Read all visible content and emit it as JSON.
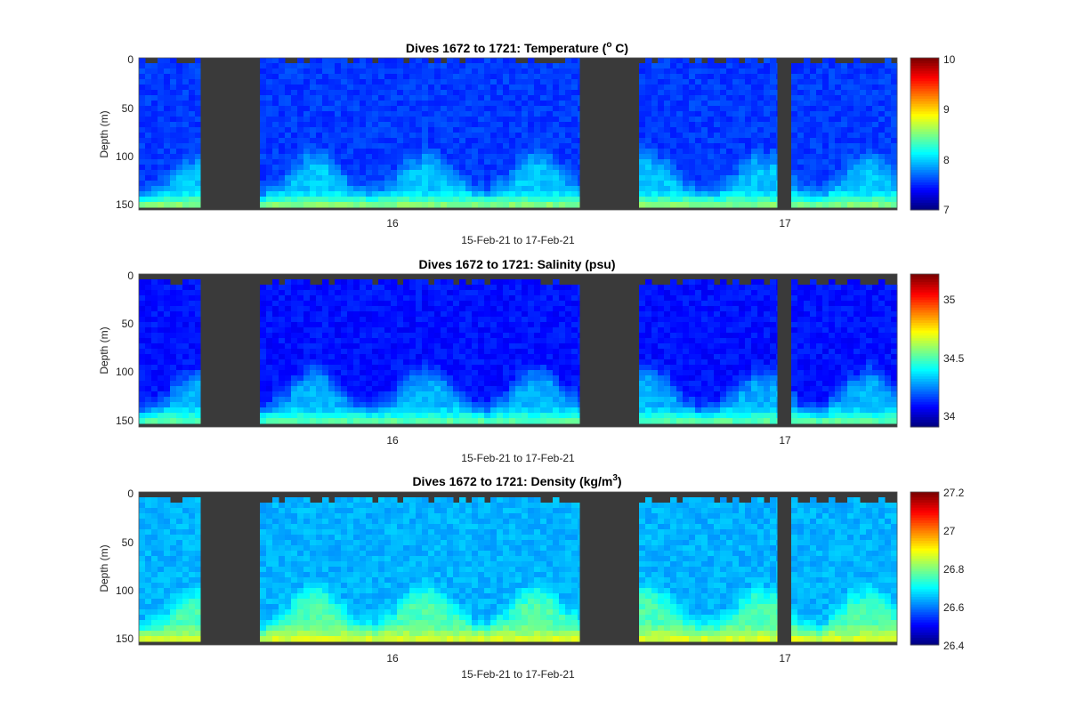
{
  "chart_data": [
    {
      "type": "heatmap",
      "title_main": "Dives 1672 to 1721: Temperature (",
      "title_sup": "o",
      "title_tail": " C)",
      "xlabel": "15-Feb-21 to 17-Feb-21",
      "ylabel": "Depth (m)",
      "xticks": [
        "16",
        "17"
      ],
      "yticks": [
        "0",
        "50",
        "100",
        "150"
      ],
      "ylim": [
        155,
        0
      ],
      "colorbar": {
        "min": 7,
        "max": 10,
        "ticks": [
          "7",
          "8",
          "9",
          "10"
        ],
        "colormap": "jet"
      },
      "surface_level": 0.18,
      "deep_level": 0.32,
      "bottom_level": 0.55
    },
    {
      "type": "heatmap",
      "title_main": "Dives 1672 to 1721: Salinity (psu)",
      "title_sup": "",
      "title_tail": "",
      "xlabel": "15-Feb-21 to 17-Feb-21",
      "ylabel": "Depth (m)",
      "xticks": [
        "16",
        "17"
      ],
      "yticks": [
        "0",
        "50",
        "100",
        "150"
      ],
      "ylim": [
        155,
        0
      ],
      "colorbar": {
        "min": 33.9,
        "max": 35.2,
        "ticks": [
          "34",
          "34.5",
          "35"
        ],
        "colormap": "jet"
      },
      "surface_level": 0.14,
      "deep_level": 0.3,
      "bottom_level": 0.5
    },
    {
      "type": "heatmap",
      "title_main": "Dives 1672 to 1721: Density (kg/m",
      "title_sup": "3",
      "title_tail": ")",
      "xlabel": "15-Feb-21 to 17-Feb-21",
      "ylabel": "Depth (m)",
      "xticks": [
        "16",
        "17"
      ],
      "yticks": [
        "0",
        "50",
        "100",
        "150"
      ],
      "ylim": [
        155,
        0
      ],
      "colorbar": {
        "min": 26.4,
        "max": 27.2,
        "ticks": [
          "26.4",
          "26.6",
          "26.8",
          "27",
          "27.2"
        ],
        "colormap": "jet"
      },
      "surface_level": 0.3,
      "deep_level": 0.45,
      "bottom_level": 0.62
    }
  ]
}
